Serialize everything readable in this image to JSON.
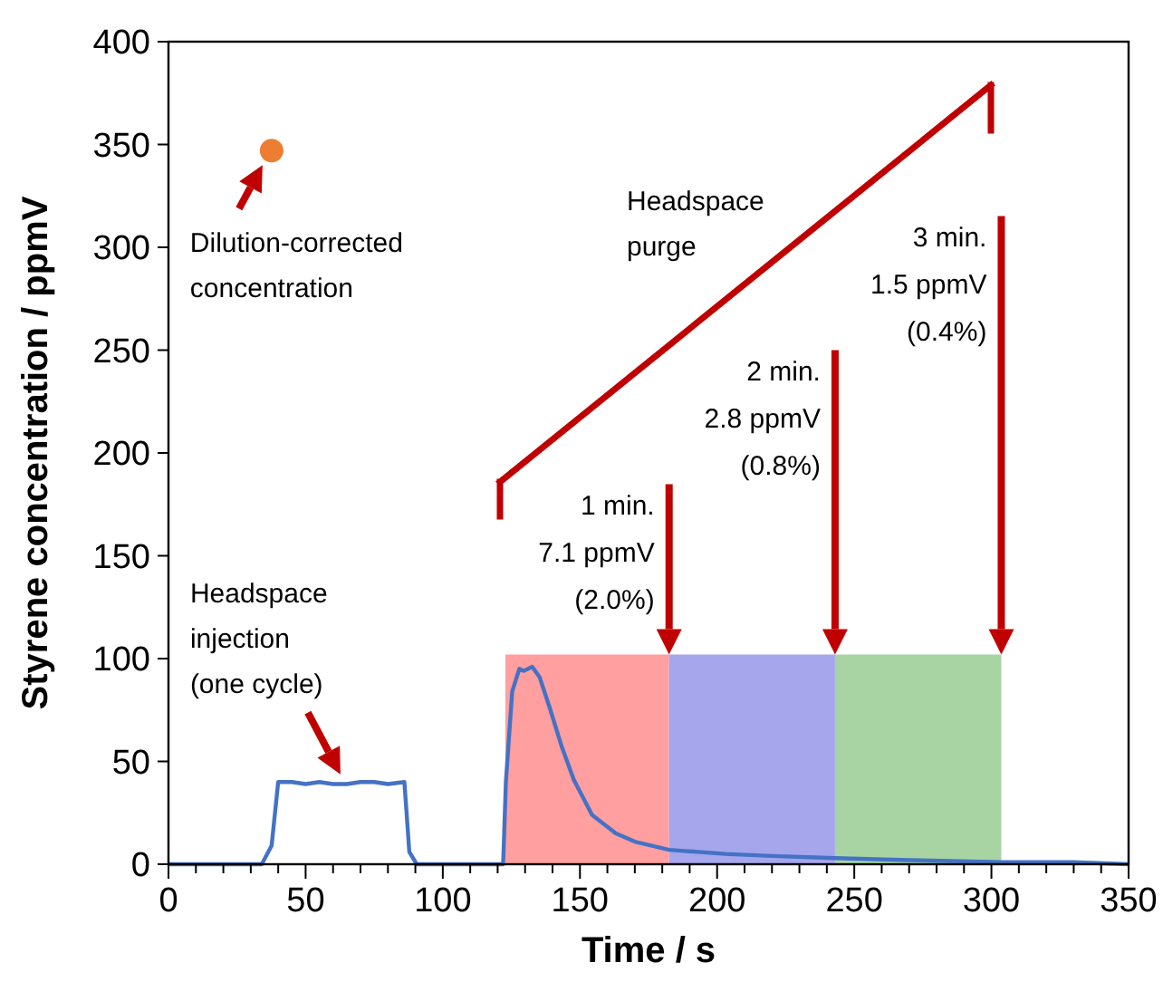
{
  "chart_data": {
    "type": "line",
    "xlabel": "Time / s",
    "ylabel": "Styrene concentration / ppmV",
    "xlim": [
      0,
      350
    ],
    "ylim": [
      0,
      400
    ],
    "xticks": [
      0,
      {
        "value": 10,
        "label": null
      },
      {
        "value": 20,
        "label": null
      },
      {
        "value": 30,
        "label": null
      },
      {
        "value": 40,
        "label": null
      },
      50,
      {
        "value": 60,
        "label": null
      },
      {
        "value": 70,
        "label": null
      },
      {
        "value": 80,
        "label": null
      },
      {
        "value": 90,
        "label": null
      },
      100,
      {
        "value": 110,
        "label": null
      },
      {
        "value": 120,
        "label": null
      },
      {
        "value": 130,
        "label": null
      },
      {
        "value": 140,
        "label": null
      },
      150,
      {
        "value": 160,
        "label": null
      },
      {
        "value": 170,
        "label": null
      },
      {
        "value": 180,
        "label": null
      },
      {
        "value": 190,
        "label": null
      },
      200,
      {
        "value": 210,
        "label": null
      },
      {
        "value": 220,
        "label": null
      },
      {
        "value": 230,
        "label": null
      },
      {
        "value": 240,
        "label": null
      },
      250,
      {
        "value": 260,
        "label": null
      },
      {
        "value": 270,
        "label": null
      },
      {
        "value": 280,
        "label": null
      },
      {
        "value": 290,
        "label": null
      },
      300,
      {
        "value": 310,
        "label": null
      },
      {
        "value": 320,
        "label": null
      },
      {
        "value": 330,
        "label": null
      },
      {
        "value": 340,
        "label": null
      },
      350
    ],
    "yticks": [
      0,
      50,
      100,
      150,
      200,
      250,
      300,
      350,
      400
    ],
    "grid": false,
    "series": [
      {
        "type": "area",
        "color": "#ff9f9f",
        "x": [
          122.8,
          182.5
        ],
        "values": [
          102,
          102
        ]
      },
      {
        "type": "area",
        "color": "#a6a6ec",
        "x": [
          182.5,
          243
        ],
        "values": [
          102,
          102
        ]
      },
      {
        "type": "area",
        "color": "#a8d4a4",
        "x": [
          243,
          303.6
        ],
        "values": [
          102,
          102
        ]
      },
      {
        "color": "#4472c4",
        "marker": "none",
        "x": [
          0,
          34,
          37.6,
          40,
          45,
          50,
          55,
          60,
          65,
          70,
          75,
          80,
          86,
          87.8,
          90.5,
          122,
          123,
          125.3,
          127.9,
          129.5,
          132.6,
          135.3,
          139,
          143.4,
          147.8,
          154.4,
          163.1,
          170,
          176.3,
          182.5,
          203,
          220,
          243,
          270,
          303.6,
          330,
          350
        ],
        "values": [
          0,
          0,
          9,
          40,
          40,
          39,
          40,
          39,
          39,
          40,
          40,
          39,
          40,
          6,
          0,
          0,
          40,
          84,
          95,
          94,
          96,
          91,
          76,
          57,
          41,
          24,
          15,
          11,
          9,
          7,
          5,
          4,
          3,
          2,
          1,
          1,
          0
        ]
      },
      {
        "type": "scatter",
        "color": "#ed7d31",
        "marker": "circle",
        "x": [
          37.6
        ],
        "values": [
          347
        ]
      }
    ],
    "annotations": [
      {
        "text": "Dilution-corrected\nconcentration",
        "x": 37.6,
        "y": 347
      },
      {
        "text": "Headspace\ninjection\n(one cycle)",
        "x": 62.7,
        "y": 42
      },
      "Headspace\npurge",
      "1 min.\n7.1 ppmV\n(2.0%)",
      "2 min.\n2.8 ppmV\n(0.8%)",
      "3 min.\n1.5 ppmV\n(0.4%)"
    ]
  }
}
